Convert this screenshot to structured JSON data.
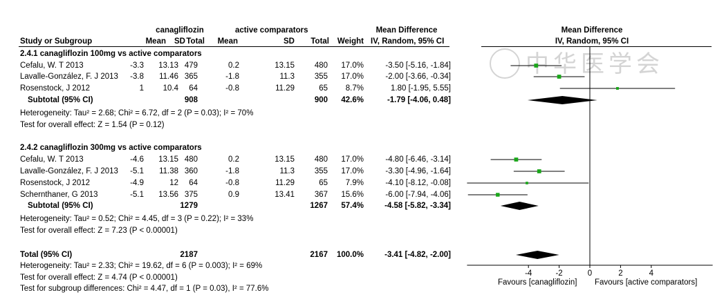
{
  "chart_data": {
    "type": "table",
    "header": {
      "group1": "canagliflozin",
      "group2": "active comparators",
      "md": "Mean Difference",
      "md_plot": "Mean Difference",
      "study": "Study or Subgroup",
      "mean": "Mean",
      "sd": "SD",
      "total": "Total",
      "weight": "Weight",
      "ci": "IV, Random, 95% CI"
    },
    "subgroups": [
      {
        "title": "2.4.1 canagliflozin 100mg vs active comparators",
        "studies": [
          {
            "name": "Cefalu, W. T 2013",
            "m1": "-3.3",
            "sd1": "13.13",
            "n1": "479",
            "m2": "0.2",
            "sd2": "13.15",
            "n2": "480",
            "weight": "17.0%",
            "ci_text": "-3.50 [-5.16, -1.84]",
            "md": -3.5,
            "lo": -5.16,
            "hi": -1.84,
            "w": 17.0
          },
          {
            "name": "Lavalle-González, F. J 2013",
            "m1": "-3.8",
            "sd1": "11.46",
            "n1": "365",
            "m2": "-1.8",
            "sd2": "11.3",
            "n2": "355",
            "weight": "17.0%",
            "ci_text": "-2.00 [-3.66, -0.34]",
            "md": -2.0,
            "lo": -3.66,
            "hi": -0.34,
            "w": 17.0
          },
          {
            "name": "Rosenstock, J 2012",
            "m1": "1",
            "sd1": "10.4",
            "n1": "64",
            "m2": "-0.8",
            "sd2": "11.29",
            "n2": "65",
            "weight": "8.7%",
            "ci_text": "1.80 [-1.95, 5.55]",
            "md": 1.8,
            "lo": -1.95,
            "hi": 5.55,
            "w": 8.7
          }
        ],
        "subtotal": {
          "label": "Subtotal (95% CI)",
          "n1": "908",
          "n2": "900",
          "weight": "42.6%",
          "ci_text": "-1.79 [-4.06, 0.48]",
          "md": -1.79,
          "lo": -4.06,
          "hi": 0.48
        },
        "heterogeneity": "Heterogeneity: Tau² = 2.68; Chi² = 6.72, df = 2 (P = 0.03); I² = 70%",
        "overall": "Test for overall effect: Z = 1.54 (P = 0.12)"
      },
      {
        "title": "2.4.2 canagliflozin 300mg vs active comparators",
        "studies": [
          {
            "name": "Cefalu, W. T 2013",
            "m1": "-4.6",
            "sd1": "13.15",
            "n1": "480",
            "m2": "0.2",
            "sd2": "13.15",
            "n2": "480",
            "weight": "17.0%",
            "ci_text": "-4.80 [-6.46, -3.14]",
            "md": -4.8,
            "lo": -6.46,
            "hi": -3.14,
            "w": 17.0
          },
          {
            "name": "Lavalle-González, F. J 2013",
            "m1": "-5.1",
            "sd1": "11.38",
            "n1": "360",
            "m2": "-1.8",
            "sd2": "11.3",
            "n2": "355",
            "weight": "17.0%",
            "ci_text": "-3.30 [-4.96, -1.64]",
            "md": -3.3,
            "lo": -4.96,
            "hi": -1.64,
            "w": 17.0
          },
          {
            "name": "Rosenstock, J 2012",
            "m1": "-4.9",
            "sd1": "12",
            "n1": "64",
            "m2": "-0.8",
            "sd2": "11.29",
            "n2": "65",
            "weight": "7.9%",
            "ci_text": "-4.10 [-8.12, -0.08]",
            "md": -4.1,
            "lo": -8.12,
            "hi": -0.08,
            "w": 7.9
          },
          {
            "name": "Schernthaner, G 2013",
            "m1": "-5.1",
            "sd1": "13.56",
            "n1": "375",
            "m2": "0.9",
            "sd2": "13.41",
            "n2": "367",
            "weight": "15.6%",
            "ci_text": "-6.00 [-7.94, -4.06]",
            "md": -6.0,
            "lo": -7.94,
            "hi": -4.06,
            "w": 15.6
          }
        ],
        "subtotal": {
          "label": "Subtotal (95% CI)",
          "n1": "1279",
          "n2": "1267",
          "weight": "57.4%",
          "ci_text": "-4.58 [-5.82, -3.34]",
          "md": -4.58,
          "lo": -5.82,
          "hi": -3.34
        },
        "heterogeneity": "Heterogeneity: Tau² = 0.52; Chi² = 4.45, df = 3 (P = 0.22); I² = 33%",
        "overall": "Test for overall effect: Z = 7.23 (P < 0.00001)"
      }
    ],
    "total": {
      "label": "Total (95% CI)",
      "n1": "2187",
      "n2": "2167",
      "weight": "100.0%",
      "ci_text": "-3.41 [-4.82, -2.00]",
      "md": -3.41,
      "lo": -4.82,
      "hi": -2.0
    },
    "total_heterogeneity": "Heterogeneity: Tau² = 2.33; Chi² = 19.62, df = 6 (P = 0.003); I² = 69%",
    "total_overall": "Test for overall effect: Z = 4.74 (P < 0.00001)",
    "subgroup_diff": "Test for subgroup differences: Chi² = 4.47, df = 1 (P = 0.03), I² = 77.6%",
    "axis": {
      "ticks": [
        "-4",
        "-2",
        "0",
        "2",
        "4"
      ],
      "tick_values": [
        -4,
        -2,
        0,
        2,
        4
      ],
      "xlim": [
        -8,
        8
      ]
    },
    "favours_left": "Favours [canagliflozin]",
    "favours_right": "Favours [active comparators]",
    "watermark": "中华医学会",
    "colors": {
      "study_marker": "#1aa71a",
      "diamond": "#000000",
      "watermark": "#d4d4d4"
    }
  }
}
